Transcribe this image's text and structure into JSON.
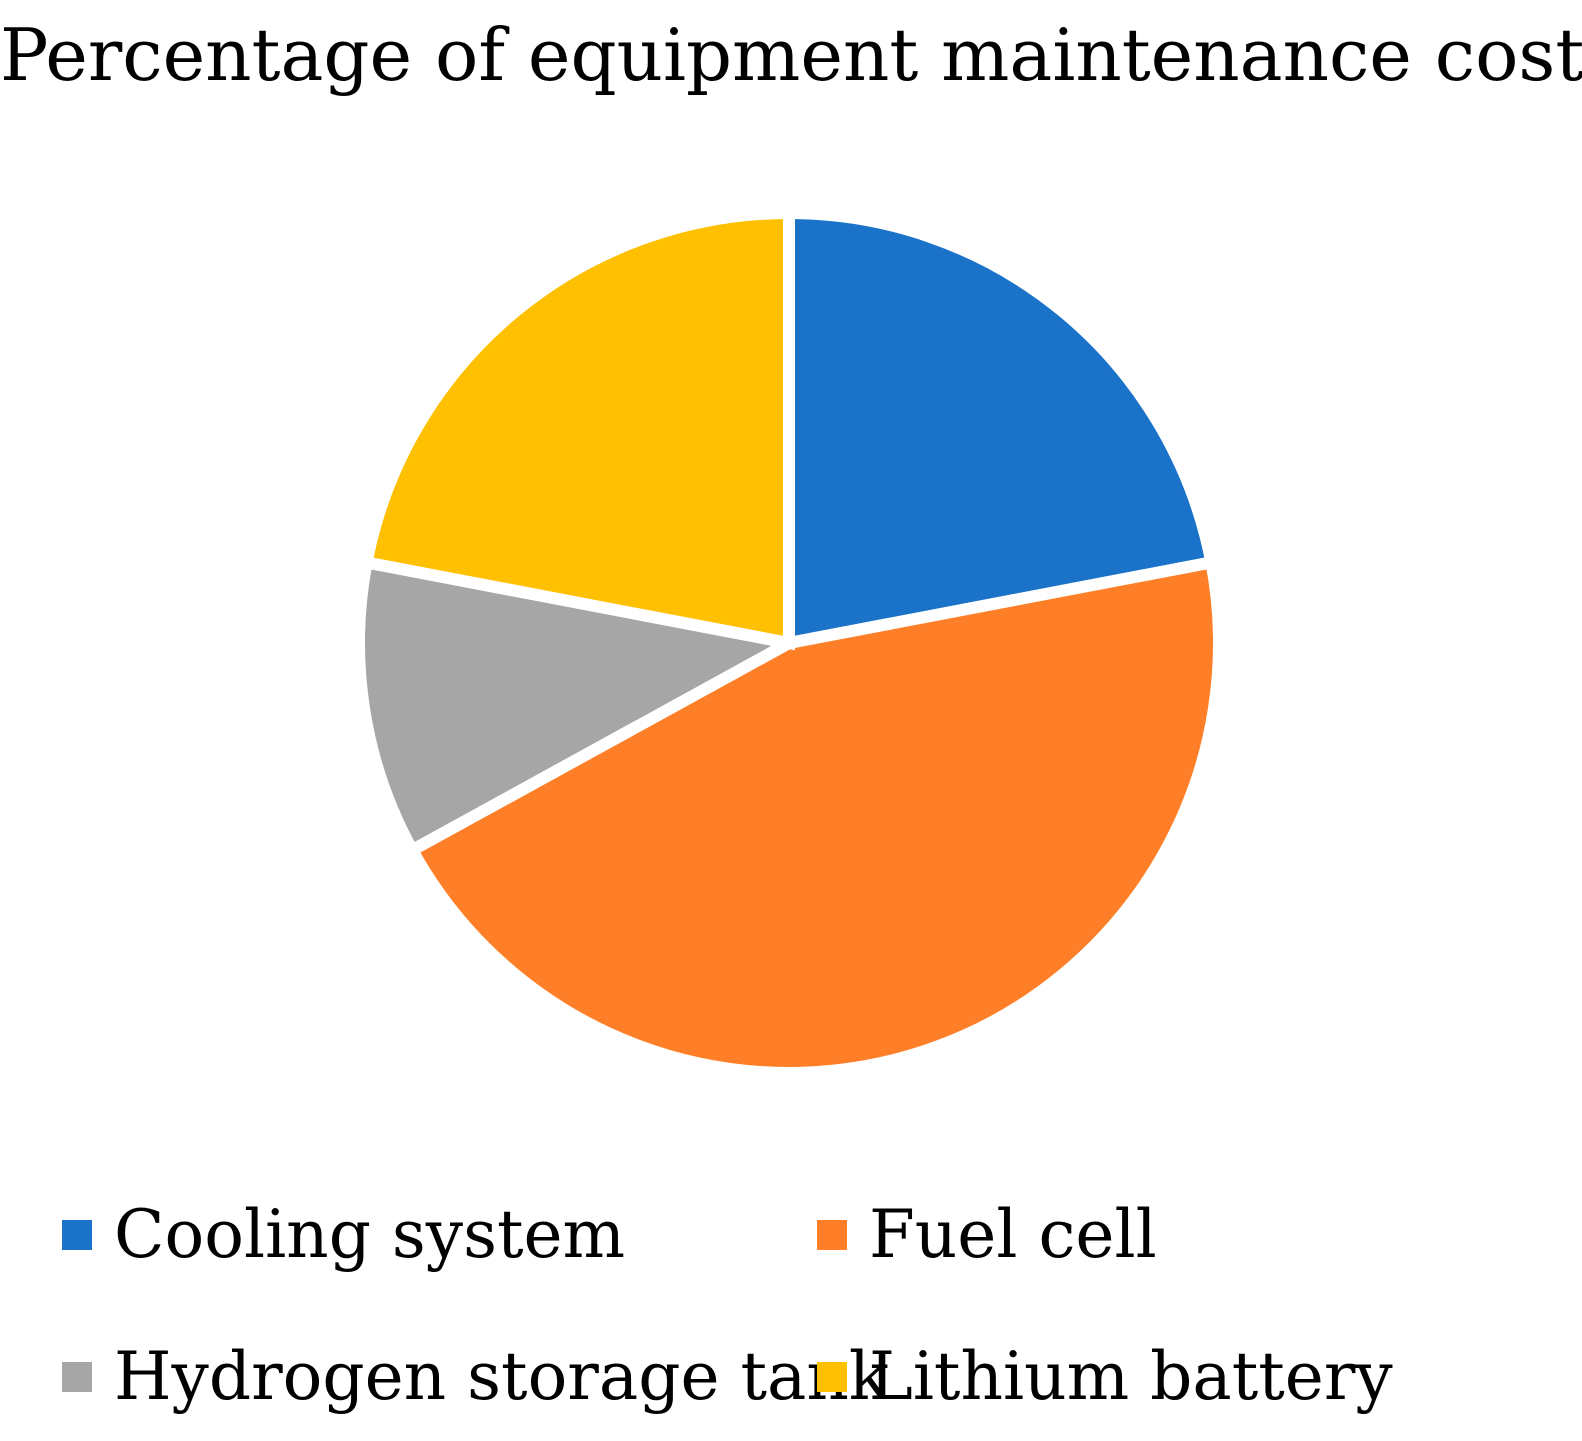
{
  "chart_data": {
    "type": "pie",
    "title": "Percentage of equipment maintenance costs",
    "categories": [
      "Cooling system",
      "Fuel cell",
      "Hydrogen storage tank",
      "Lithium battery"
    ],
    "values": [
      22,
      45,
      11,
      22
    ],
    "unit": "%",
    "colors": [
      "#1A73C9",
      "#FE7F27",
      "#A6A6A6",
      "#FEC000"
    ],
    "legend_position": "bottom",
    "start_angle": "12 o'clock",
    "direction": "clockwise"
  }
}
